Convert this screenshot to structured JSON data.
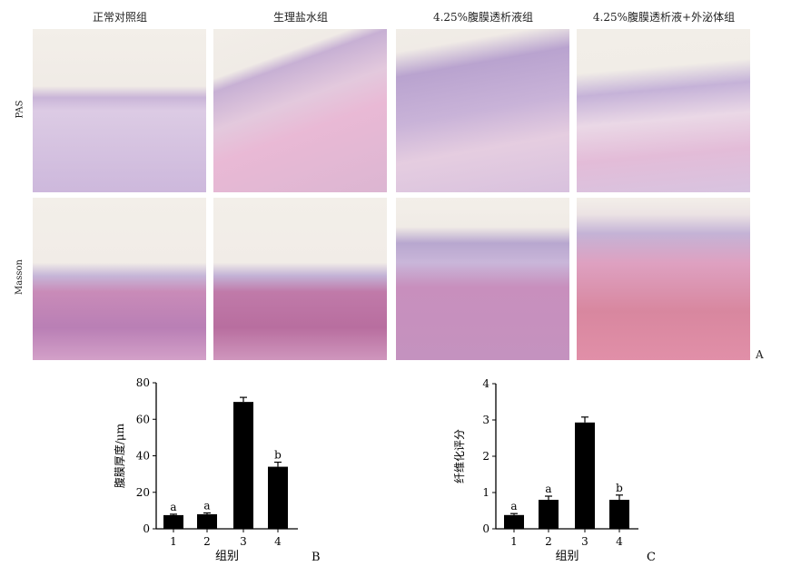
{
  "figure_a": {
    "columns": [
      "正常对照组",
      "生理盐水组",
      "4.25%腹膜透析液组",
      "4.25%腹膜透析液+外泌体组"
    ],
    "rows": [
      "PAS",
      "Masson"
    ],
    "label": "A",
    "colors": {
      "pas_tissue": "#d9c4e0",
      "pas_fiber": "#e6b8d6",
      "masson_muscle": "#c98bb8",
      "masson_bg": "#f4ede9"
    }
  },
  "chart_data": [
    {
      "type": "bar",
      "panel_label": "B",
      "categories": [
        "1",
        "2",
        "3",
        "4"
      ],
      "values": [
        7.5,
        8,
        69.5,
        34
      ],
      "errors": [
        0.5,
        0.7,
        2.5,
        2.5
      ],
      "annotations": [
        "a",
        "a",
        "",
        "b"
      ],
      "xlabel": "组别",
      "ylabel": "腹膜厚度/μm",
      "ylim": [
        0,
        80
      ],
      "yticks": [
        0,
        20,
        40,
        60,
        80
      ],
      "bar_color": "#000000",
      "grid": false
    },
    {
      "type": "bar",
      "panel_label": "C",
      "categories": [
        "1",
        "2",
        "3",
        "4"
      ],
      "values": [
        0.38,
        0.8,
        2.93,
        0.8
      ],
      "errors": [
        0.04,
        0.1,
        0.15,
        0.13
      ],
      "annotations": [
        "a",
        "a",
        "",
        "b"
      ],
      "xlabel": "组别",
      "ylabel": "纤维化评分",
      "ylim": [
        0,
        4
      ],
      "yticks": [
        0,
        1,
        2,
        3,
        4
      ],
      "bar_color": "#000000",
      "grid": false
    }
  ]
}
